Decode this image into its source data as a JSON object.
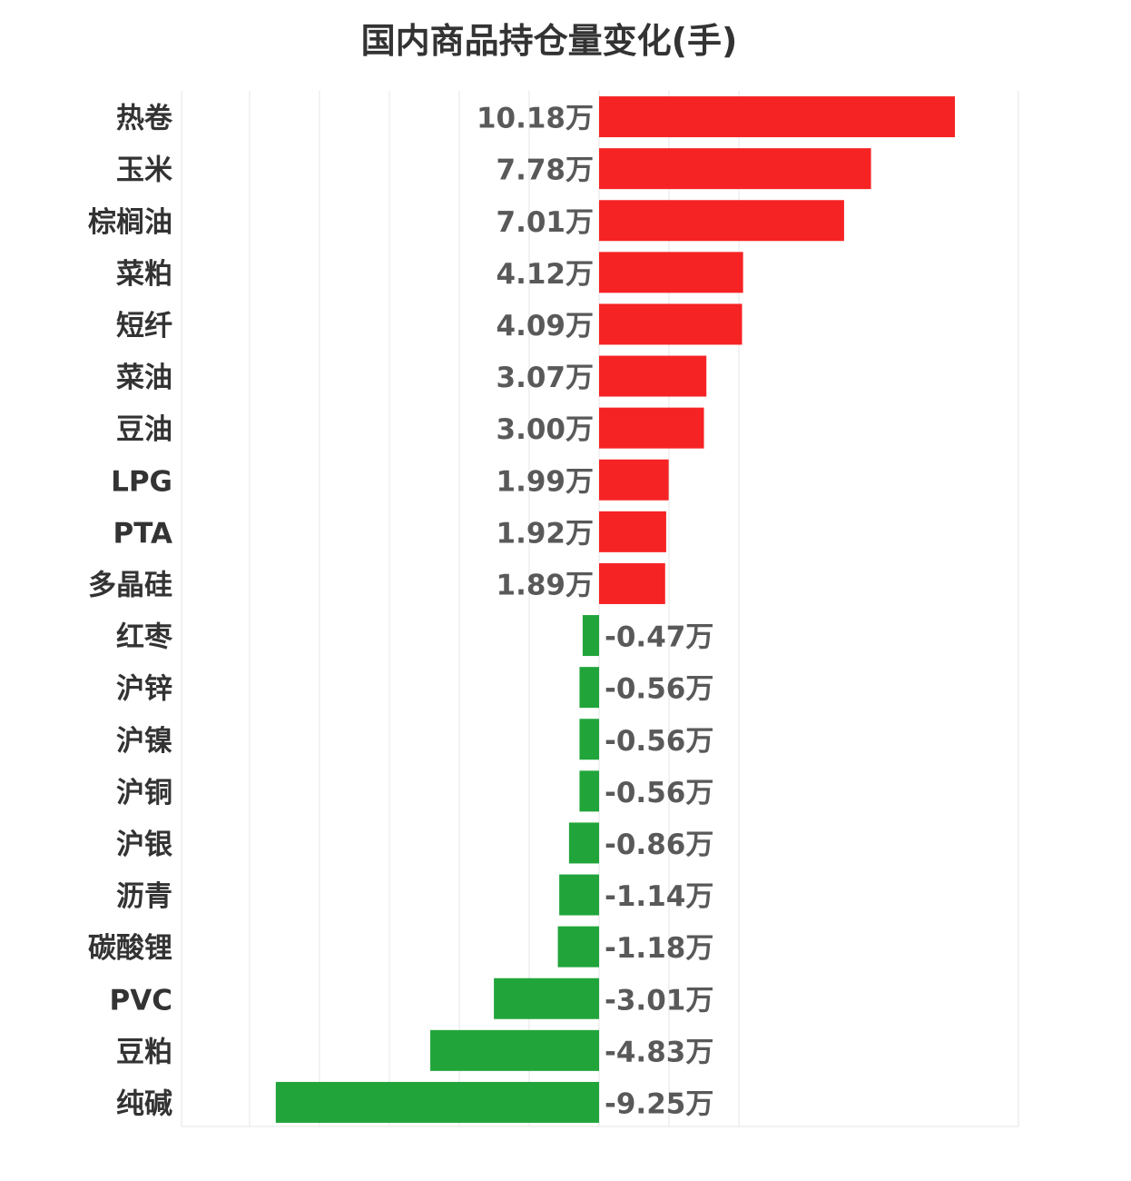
{
  "chart_data": {
    "type": "bar",
    "orientation": "horizontal",
    "title": "国内商品持仓量变化(手)",
    "xlabel": "",
    "ylabel": "",
    "unit": "万",
    "grid": true,
    "legend": "none",
    "xlim": [
      -12,
      5
    ],
    "colors": {
      "positive": "#f62324",
      "negative": "#21a53b",
      "label": "#595959",
      "category": "#333333",
      "grid": "#e6e6e6"
    },
    "categories": [
      "热卷",
      "玉米",
      "棕榈油",
      "菜粕",
      "短纤",
      "菜油",
      "豆油",
      "LPG",
      "PTA",
      "多晶硅",
      "红枣",
      "沪锌",
      "沪镍",
      "沪铜",
      "沪银",
      "沥青",
      "碳酸锂",
      "PVC",
      "豆粕",
      "纯碱"
    ],
    "values": [
      10.18,
      7.78,
      7.01,
      4.12,
      4.09,
      3.07,
      3.0,
      1.99,
      1.92,
      1.89,
      -0.47,
      -0.56,
      -0.56,
      -0.56,
      -0.86,
      -1.14,
      -1.18,
      -3.01,
      -4.83,
      -9.25
    ],
    "value_labels": [
      "10.18万",
      "7.78万",
      "7.01万",
      "4.12万",
      "4.09万",
      "3.07万",
      "3.00万",
      "1.99万",
      "1.92万",
      "1.89万",
      "-0.47万",
      "-0.56万",
      "-0.56万",
      "-0.56万",
      "-0.86万",
      "-1.14万",
      "-1.18万",
      "-3.01万",
      "-4.83万",
      "-9.25万"
    ]
  }
}
